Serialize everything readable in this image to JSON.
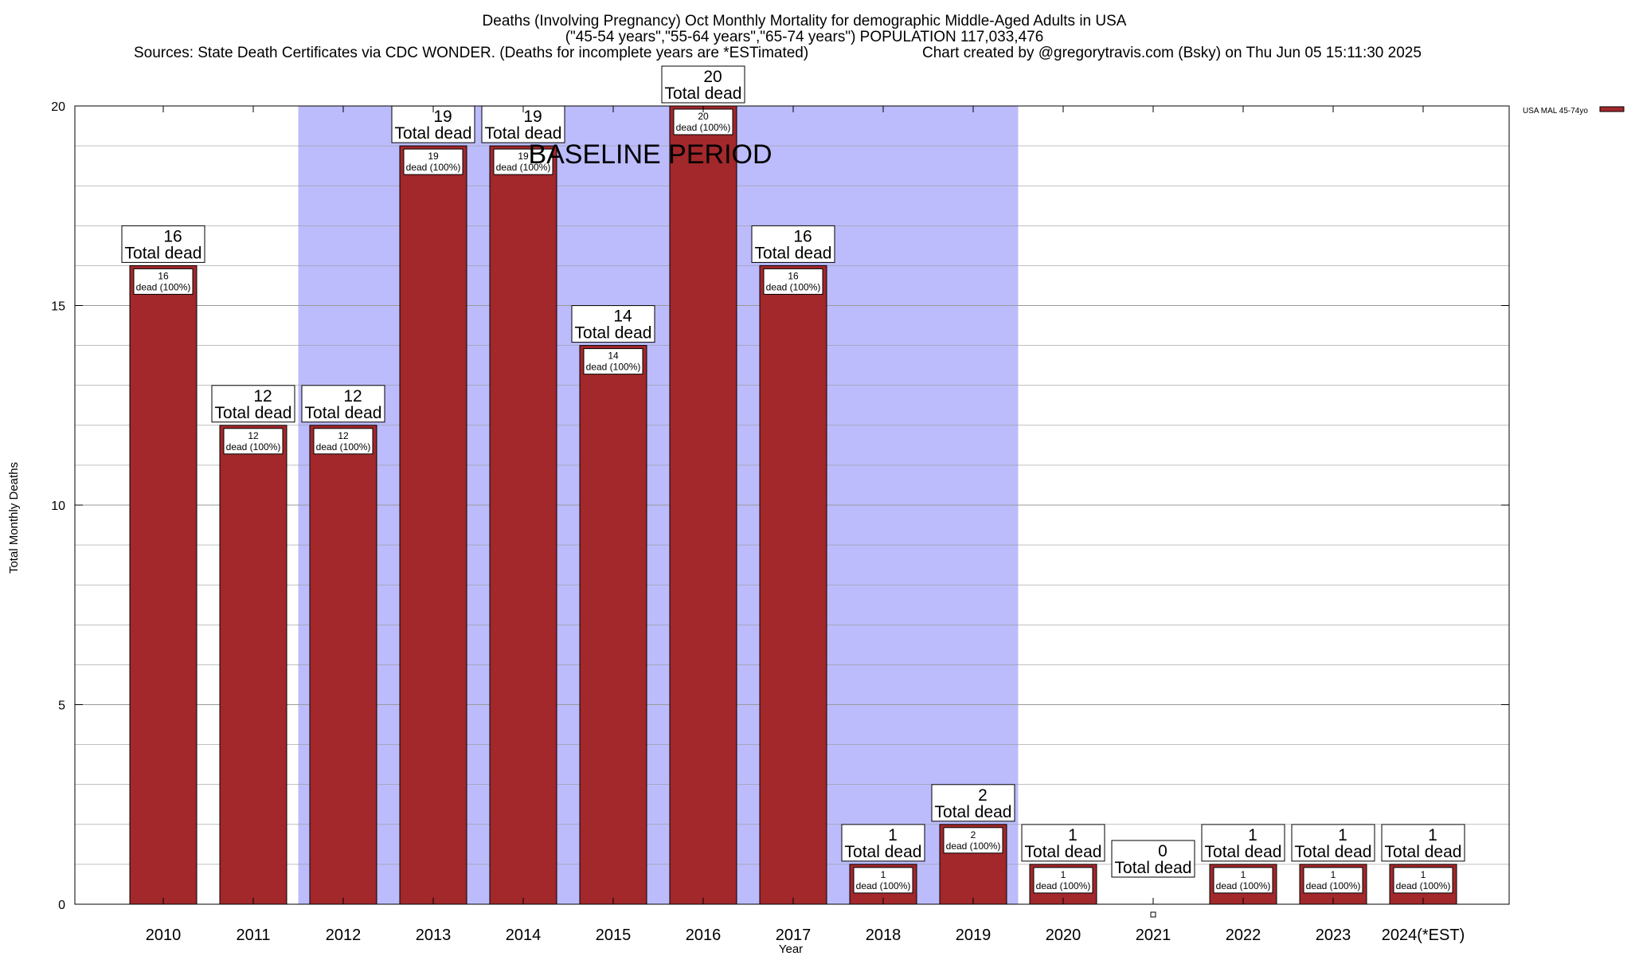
{
  "chart_data": {
    "type": "bar",
    "title_lines": [
      "Deaths (Involving Pregnancy) Oct Monthly Mortality for demographic Middle-Aged Adults in USA",
      "(\"45-54 years\",\"55-64 years\",\"65-74 years\") POPULATION 117,033,476"
    ],
    "source_note": "Sources: State Death Certificates via CDC WONDER. (Deaths for incomplete years are *ESTimated)",
    "credit_note": "Chart created by @gregorytravis.com (Bsky) on Thu Jun 05 15:11:30 2025",
    "xlabel": "Year",
    "ylabel": "Total Monthly Deaths",
    "ylim": [
      0,
      20
    ],
    "yticks": [
      "0",
      "5",
      "10",
      "15",
      "20"
    ],
    "grid": true,
    "categories": [
      "2010",
      "2011",
      "2012",
      "2013",
      "2014",
      "2015",
      "2016",
      "2017",
      "2018",
      "2019",
      "2020",
      "2021",
      "2022",
      "2023",
      "2024(*EST)"
    ],
    "series": [
      {
        "name": "USA MAL 45-74yo",
        "color": "#a2282b",
        "values": [
          16,
          12,
          12,
          19,
          19,
          14,
          20,
          16,
          1,
          2,
          1,
          0,
          1,
          1,
          1
        ]
      }
    ],
    "total_label_suffix": "Total dead",
    "segment_label_suffix": "dead (100%)",
    "baseline_period": {
      "label": "BASELINE PERIOD",
      "start_category": "2012",
      "end_category": "2019",
      "color": "#bcbcfc"
    },
    "legend_position": "top-right"
  }
}
